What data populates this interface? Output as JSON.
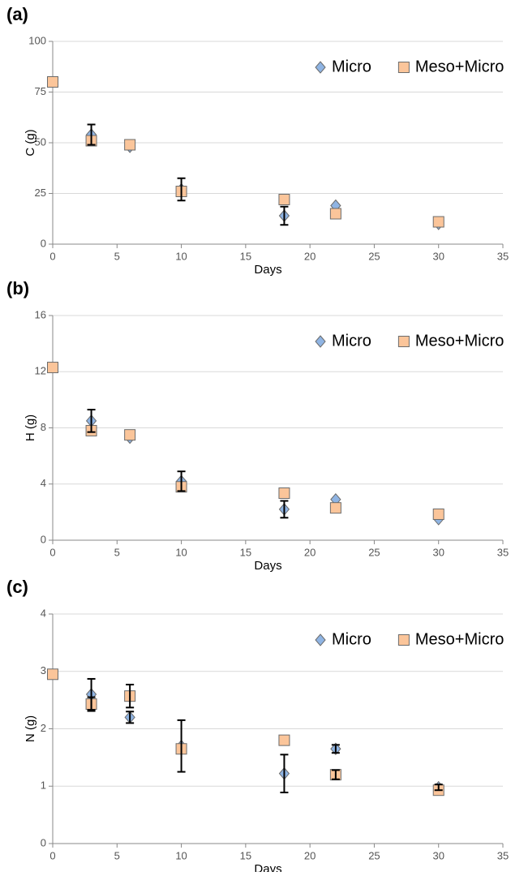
{
  "chart_data": [
    {
      "type": "scatter",
      "panel_label": "(a)",
      "x_label": "Days",
      "y_label": "C (g)",
      "x": [
        0,
        3,
        6,
        10,
        18,
        22,
        30
      ],
      "series": [
        {
          "name": "Micro",
          "color": "#8fb4e3",
          "marker": "diamond",
          "values": [
            null,
            54,
            48,
            27,
            14,
            19,
            10
          ],
          "errors": [
            null,
            5,
            null,
            5.5,
            4.5,
            null,
            null
          ]
        },
        {
          "name": "Meso+Micro",
          "color": "#fbc59a",
          "marker": "square",
          "values": [
            80,
            51,
            49,
            26,
            22,
            15,
            11
          ],
          "errors": [
            null,
            null,
            null,
            null,
            null,
            null,
            null
          ]
        }
      ],
      "xlim": [
        0,
        35
      ],
      "xticks": [
        0,
        5,
        10,
        15,
        20,
        25,
        30,
        35
      ],
      "ylim": [
        0,
        100
      ],
      "yticks": [
        0,
        25,
        50,
        75,
        100
      ],
      "grid": true,
      "legend": "upper right"
    },
    {
      "type": "scatter",
      "panel_label": "(b)",
      "x_label": "Days",
      "y_label": "H (g)",
      "x": [
        0,
        3,
        6,
        10,
        18,
        22,
        30
      ],
      "series": [
        {
          "name": "Micro",
          "color": "#8fb4e3",
          "marker": "diamond",
          "values": [
            null,
            8.5,
            7.3,
            4.2,
            2.2,
            2.9,
            1.5
          ],
          "errors": [
            null,
            0.8,
            null,
            0.7,
            0.6,
            null,
            null
          ]
        },
        {
          "name": "Meso+Micro",
          "color": "#fbc59a",
          "marker": "square",
          "values": [
            12.3,
            7.8,
            7.5,
            3.8,
            3.35,
            2.3,
            1.85
          ],
          "errors": [
            null,
            null,
            null,
            null,
            null,
            null,
            null
          ]
        }
      ],
      "xlim": [
        0,
        35
      ],
      "xticks": [
        0,
        5,
        10,
        15,
        20,
        25,
        30,
        35
      ],
      "ylim": [
        0,
        16
      ],
      "yticks": [
        0,
        4,
        8,
        12,
        16
      ],
      "grid": true,
      "legend": "upper right"
    },
    {
      "type": "scatter",
      "panel_label": "(c)",
      "x_label": "Days",
      "y_label": "N (g)",
      "x": [
        0,
        3,
        6,
        10,
        18,
        22,
        30
      ],
      "series": [
        {
          "name": "Micro",
          "color": "#8fb4e3",
          "marker": "diamond",
          "values": [
            null,
            2.6,
            2.2,
            1.7,
            1.22,
            1.65,
            0.98
          ],
          "errors": [
            null,
            0.27,
            0.1,
            0.45,
            0.33,
            0.07,
            0.05
          ]
        },
        {
          "name": "Meso+Micro",
          "color": "#fbc59a",
          "marker": "square",
          "values": [
            2.95,
            2.43,
            2.57,
            1.65,
            1.8,
            1.2,
            0.93
          ],
          "errors": [
            null,
            0.12,
            0.2,
            null,
            null,
            0.08,
            null
          ]
        }
      ],
      "xlim": [
        0,
        35
      ],
      "xticks": [
        0,
        5,
        10,
        15,
        20,
        25,
        30,
        35
      ],
      "ylim": [
        0,
        4
      ],
      "yticks": [
        0,
        1,
        2,
        3,
        4
      ],
      "grid": true,
      "legend": "upper right"
    }
  ]
}
